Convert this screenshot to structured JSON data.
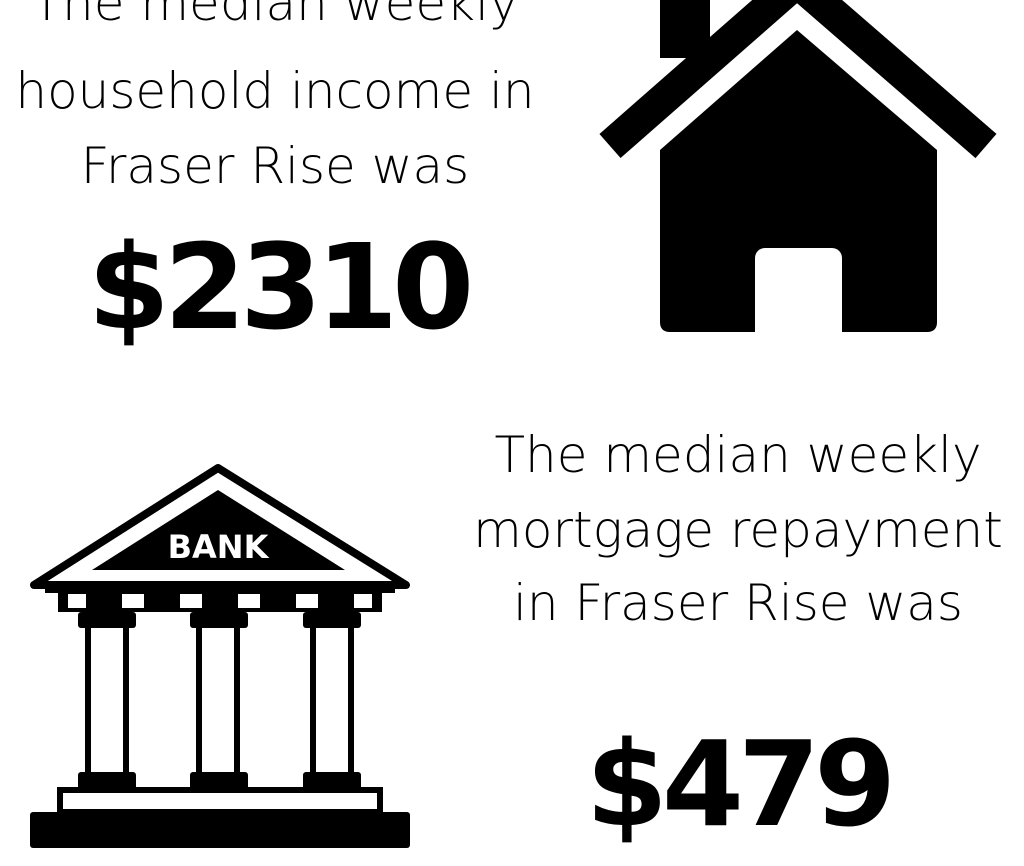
{
  "income": {
    "lines": [
      "The median weekly",
      "household income in",
      "Fraser Rise was"
    ],
    "value": "$2310"
  },
  "mortgage": {
    "lines": [
      "The median weekly",
      "mortgage repayment",
      "in Fraser Rise was"
    ],
    "value": "$479"
  },
  "bank_label": "BANK"
}
